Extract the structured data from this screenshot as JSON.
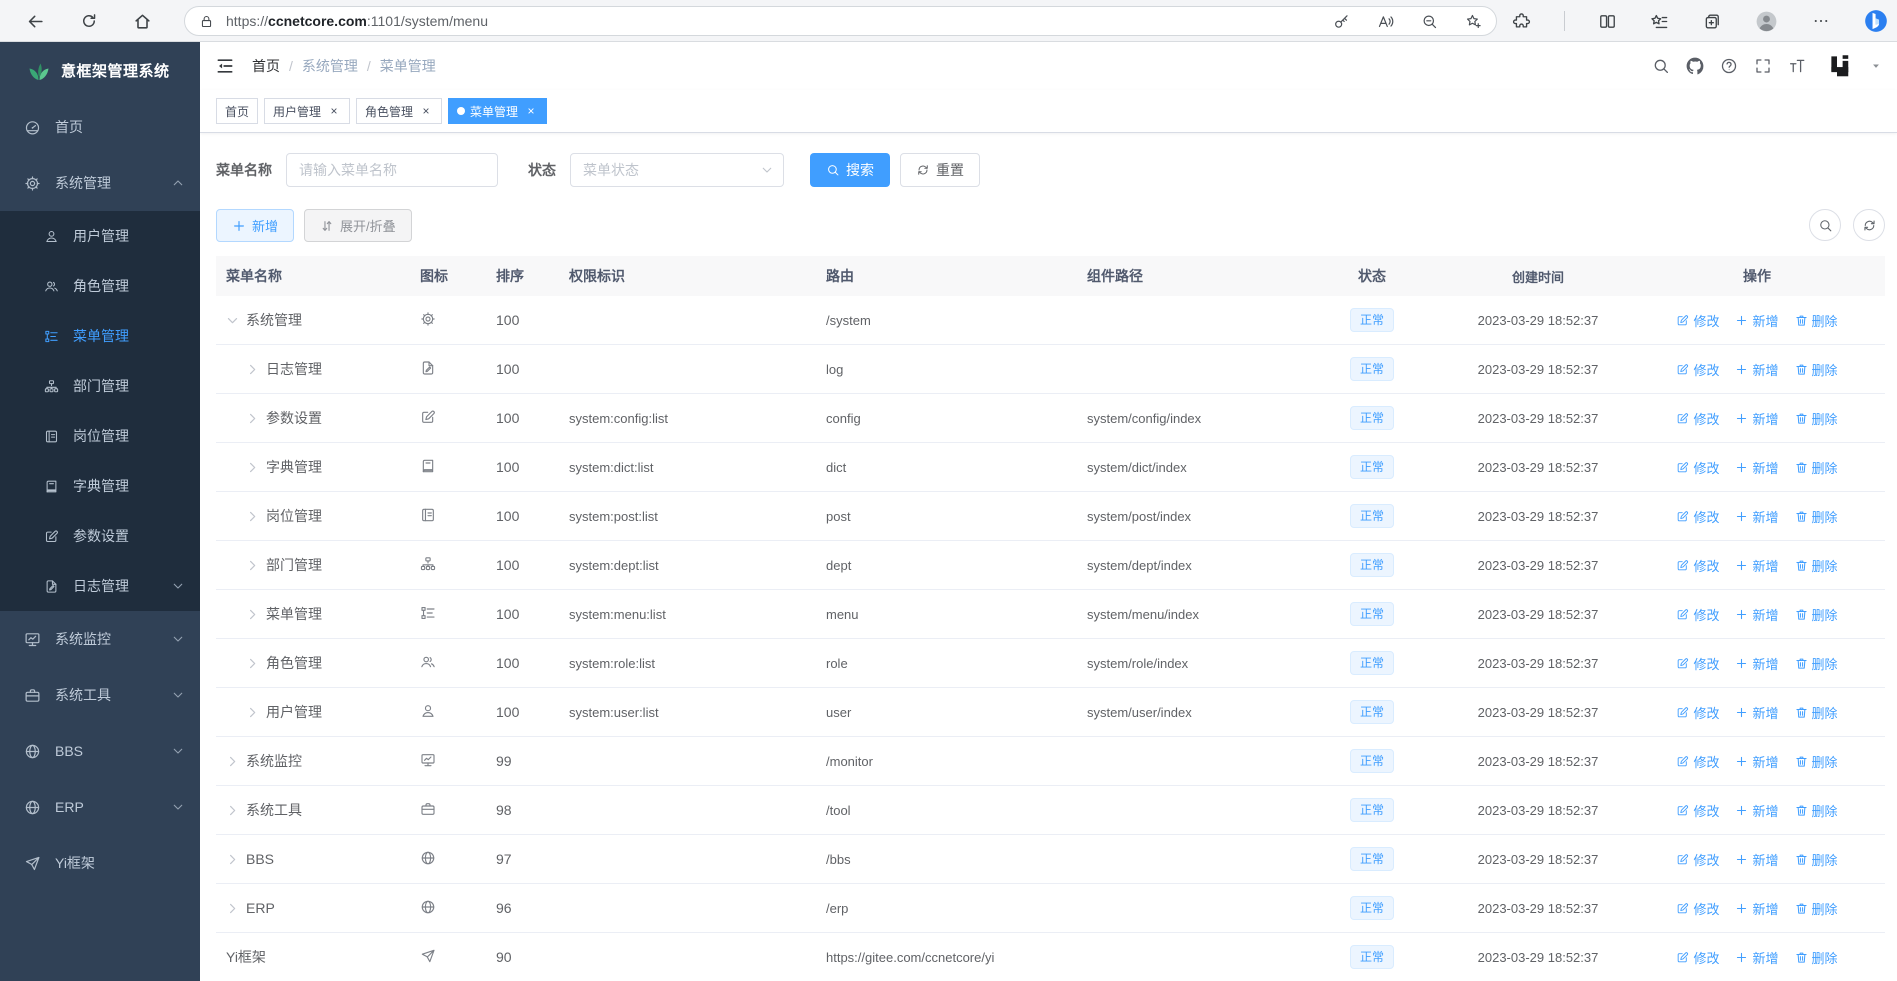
{
  "accent_color": "#409eff",
  "sidebar_colors": {
    "bg": "#304156",
    "submenu_bg": "#1f2d3d",
    "text": "#bfcbd9"
  },
  "browser": {
    "url": {
      "scheme": "https://",
      "domain": "ccnetcore.com",
      "path": ":1101/system/menu"
    },
    "left_icons": [
      "back",
      "reload",
      "home"
    ],
    "pill_icons": [
      "lock",
      "key",
      "read-aloud",
      "zoom-out",
      "star-plus"
    ],
    "right_icons": [
      "extensions",
      "split-screen",
      "favorites",
      "collections-add",
      "profile",
      "more",
      "copilot"
    ]
  },
  "sidebar": {
    "title": "意框架管理系统",
    "logo_icon": "leaf",
    "active_item": "菜单管理",
    "items": [
      {
        "label": "首页",
        "icon": "dashboard"
      },
      {
        "label": "系统管理",
        "icon": "gear",
        "expanded": true,
        "children": [
          {
            "label": "用户管理",
            "icon": "user"
          },
          {
            "label": "角色管理",
            "icon": "users"
          },
          {
            "label": "菜单管理",
            "icon": "treelist",
            "active": true
          },
          {
            "label": "部门管理",
            "icon": "orgtree"
          },
          {
            "label": "岗位管理",
            "icon": "idcard"
          },
          {
            "label": "字典管理",
            "icon": "book"
          },
          {
            "label": "参数设置",
            "icon": "editsq"
          },
          {
            "label": "日志管理",
            "icon": "log",
            "chevron": "down"
          }
        ]
      },
      {
        "label": "系统监控",
        "icon": "monitor",
        "chevron": "down"
      },
      {
        "label": "系统工具",
        "icon": "briefcase",
        "chevron": "down"
      },
      {
        "label": "BBS",
        "icon": "globe",
        "chevron": "down"
      },
      {
        "label": "ERP",
        "icon": "globe",
        "chevron": "down"
      },
      {
        "label": "Yi框架",
        "icon": "send"
      }
    ]
  },
  "appbar": {
    "breadcrumb": [
      "首页",
      "系统管理",
      "菜单管理"
    ],
    "separator": "/",
    "right_icons": [
      "search",
      "github",
      "help",
      "fullscreen",
      "font-size",
      "yi-logo",
      "caret-down"
    ]
  },
  "tabs": [
    {
      "label": "首页",
      "closable": false,
      "active": false
    },
    {
      "label": "用户管理",
      "closable": true,
      "active": false
    },
    {
      "label": "角色管理",
      "closable": true,
      "active": false
    },
    {
      "label": "菜单管理",
      "closable": true,
      "active": true
    }
  ],
  "filter": {
    "name_label": "菜单名称",
    "name_placeholder": "请输入菜单名称",
    "status_label": "状态",
    "status_placeholder": "菜单状态",
    "search_label": "搜索",
    "reset_label": "重置"
  },
  "toolbar": {
    "add_label": "新增",
    "toggle_label": "展开/折叠"
  },
  "table": {
    "headers": [
      "菜单名称",
      "图标",
      "排序",
      "权限标识",
      "路由",
      "组件路径",
      "状态",
      "创建时间",
      "操作"
    ],
    "action_labels": {
      "edit": "修改",
      "add": "新增",
      "delete": "删除"
    },
    "rows": [
      {
        "name": "系统管理",
        "icon": "gear",
        "level": 1,
        "arrow": "down",
        "order": "100",
        "perm": "",
        "route": "/system",
        "component": "",
        "status": "正常",
        "time": "2023-03-29 18:52:37"
      },
      {
        "name": "日志管理",
        "icon": "log",
        "level": 2,
        "arrow": "right",
        "order": "100",
        "perm": "",
        "route": "log",
        "component": "",
        "status": "正常",
        "time": "2023-03-29 18:52:37"
      },
      {
        "name": "参数设置",
        "icon": "editsq",
        "level": 2,
        "arrow": "right",
        "order": "100",
        "perm": "system:config:list",
        "route": "config",
        "component": "system/config/index",
        "status": "正常",
        "time": "2023-03-29 18:52:37"
      },
      {
        "name": "字典管理",
        "icon": "book",
        "level": 2,
        "arrow": "right",
        "order": "100",
        "perm": "system:dict:list",
        "route": "dict",
        "component": "system/dict/index",
        "status": "正常",
        "time": "2023-03-29 18:52:37"
      },
      {
        "name": "岗位管理",
        "icon": "idcard",
        "level": 2,
        "arrow": "right",
        "order": "100",
        "perm": "system:post:list",
        "route": "post",
        "component": "system/post/index",
        "status": "正常",
        "time": "2023-03-29 18:52:37"
      },
      {
        "name": "部门管理",
        "icon": "orgtree",
        "level": 2,
        "arrow": "right",
        "order": "100",
        "perm": "system:dept:list",
        "route": "dept",
        "component": "system/dept/index",
        "status": "正常",
        "time": "2023-03-29 18:52:37"
      },
      {
        "name": "菜单管理",
        "icon": "treelist",
        "level": 2,
        "arrow": "right",
        "order": "100",
        "perm": "system:menu:list",
        "route": "menu",
        "component": "system/menu/index",
        "status": "正常",
        "time": "2023-03-29 18:52:37"
      },
      {
        "name": "角色管理",
        "icon": "users",
        "level": 2,
        "arrow": "right",
        "order": "100",
        "perm": "system:role:list",
        "route": "role",
        "component": "system/role/index",
        "status": "正常",
        "time": "2023-03-29 18:52:37"
      },
      {
        "name": "用户管理",
        "icon": "user",
        "level": 2,
        "arrow": "right",
        "order": "100",
        "perm": "system:user:list",
        "route": "user",
        "component": "system/user/index",
        "status": "正常",
        "time": "2023-03-29 18:52:37"
      },
      {
        "name": "系统监控",
        "icon": "monitor",
        "level": 1,
        "arrow": "right",
        "order": "99",
        "perm": "",
        "route": "/monitor",
        "component": "",
        "status": "正常",
        "time": "2023-03-29 18:52:37"
      },
      {
        "name": "系统工具",
        "icon": "briefcase",
        "level": 1,
        "arrow": "right",
        "order": "98",
        "perm": "",
        "route": "/tool",
        "component": "",
        "status": "正常",
        "time": "2023-03-29 18:52:37"
      },
      {
        "name": "BBS",
        "icon": "globe",
        "level": 1,
        "arrow": "right",
        "order": "97",
        "perm": "",
        "route": "/bbs",
        "component": "",
        "status": "正常",
        "time": "2023-03-29 18:52:37"
      },
      {
        "name": "ERP",
        "icon": "globe",
        "level": 1,
        "arrow": "right",
        "order": "96",
        "perm": "",
        "route": "/erp",
        "component": "",
        "status": "正常",
        "time": "2023-03-29 18:52:37"
      },
      {
        "name": "Yi框架",
        "icon": "send",
        "level": 1,
        "arrow": null,
        "order": "90",
        "perm": "",
        "route": "https://gitee.com/ccnetcore/yi",
        "component": "",
        "status": "正常",
        "time": "2023-03-29 18:52:37"
      }
    ]
  }
}
